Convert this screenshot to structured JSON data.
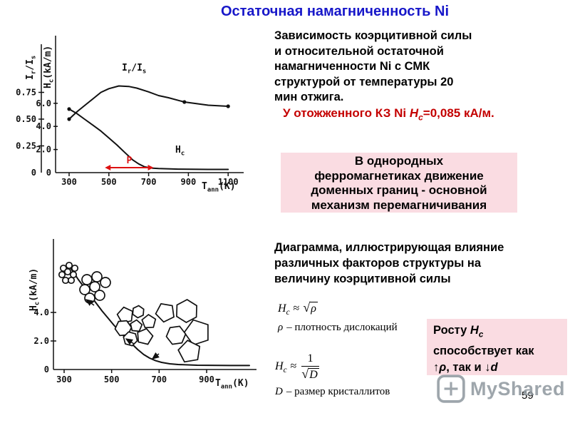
{
  "title": "Остаточная намагниченность Ni",
  "page_number": "59",
  "watermark": {
    "brand": "MyShared"
  },
  "colors": {
    "title_blue": "#1717c9",
    "red_text": "#c40000",
    "pink_box": "#fadce2",
    "annotation_red": "#dd1111",
    "watermark_gray": "#8e979e"
  },
  "intro": {
    "lines": [
      "Зависимость коэрцитивной силы",
      "и относительной остаточной",
      "намагниченности Ni с СМК",
      "структурой от температуры 20",
      "мин отжига."
    ],
    "red_note": {
      "prefix": "У отожженного КЗ Ni ",
      "symbol": "H",
      "symbol_sub": "с",
      "suffix": "=0,085 кА/м."
    }
  },
  "domain_wall_box": {
    "lines": [
      "В однородных",
      "ферромагнетиках движение",
      "доменных границ - основной",
      "механизм перемагничивания"
    ]
  },
  "diagram_caption": {
    "lines": [
      "Диаграмма, иллюстрирующая влияние",
      "различных факторов структуры на",
      "величину коэрцитивной силы"
    ]
  },
  "formulas": {
    "dislocation": {
      "lhs": "H",
      "lhs_sub": "c",
      "relation": "≈",
      "sqrt": "√",
      "radicand": "ρ"
    },
    "dislocation_note": {
      "symbol": "ρ",
      "text": "– плотность дислокаций"
    },
    "grain": {
      "lhs": "H",
      "lhs_sub": "c",
      "relation": "≈",
      "numerator": "1",
      "sqrt": "√",
      "radicand": "D"
    },
    "grain_note": {
      "symbol": "D",
      "text": "– размер кристаллитов"
    }
  },
  "growth_box": {
    "l1_prefix": "Росту ",
    "symbol": "H",
    "symbol_sub": "с",
    "l2": "способствует как",
    "l3_up": "↑",
    "l3_rho": "ρ",
    "l3_mid": ", так и ↓",
    "l3_d": "d"
  },
  "chart_data": [
    {
      "type": "line",
      "axes": {
        "x": {
          "base": "T",
          "sub": "ann",
          "rest": "(K)",
          "ticks": [
            "300",
            "500",
            "700",
            "900",
            "1100"
          ],
          "tick_values": [
            300,
            500,
            700,
            900,
            1100
          ],
          "range": [
            250,
            1160
          ]
        },
        "y1": {
          "base": "I",
          "sub": "r",
          "base2": "/I",
          "sub2": "s",
          "ticks": [
            "0.75",
            "0.50",
            "0.25",
            "0"
          ],
          "tick_values": [
            0.75,
            0.5,
            0.25,
            0
          ],
          "range": [
            0,
            0.9
          ]
        },
        "y2": {
          "base": "H",
          "sub": "c",
          "rest": "(kA/m)",
          "ticks": [
            "6.0",
            "4.0",
            "2.0",
            "0"
          ],
          "tick_values": [
            6,
            4,
            2,
            0
          ],
          "range": [
            0,
            7.5
          ]
        }
      },
      "series": [
        {
          "name": "Ir/Is",
          "axis": "y1",
          "points": [
            [
              300,
              0.5
            ],
            [
              340,
              0.57
            ],
            [
              380,
              0.63
            ],
            [
              420,
              0.69
            ],
            [
              460,
              0.75
            ],
            [
              500,
              0.785
            ],
            [
              550,
              0.81
            ],
            [
              600,
              0.805
            ],
            [
              640,
              0.79
            ],
            [
              700,
              0.755
            ],
            [
              750,
              0.72
            ],
            [
              800,
              0.7
            ],
            [
              880,
              0.66
            ],
            [
              940,
              0.645
            ],
            [
              1000,
              0.63
            ],
            [
              1050,
              0.625
            ],
            [
              1100,
              0.62
            ]
          ],
          "marker_indices": [
            0,
            12,
            16
          ]
        },
        {
          "name": "Hc",
          "axis": "y2",
          "points": [
            [
              300,
              5.5
            ],
            [
              340,
              5.1
            ],
            [
              380,
              4.6
            ],
            [
              420,
              4.1
            ],
            [
              460,
              3.6
            ],
            [
              500,
              3.0
            ],
            [
              540,
              2.4
            ],
            [
              580,
              1.75
            ],
            [
              620,
              1.1
            ],
            [
              650,
              0.75
            ],
            [
              680,
              0.5
            ],
            [
              720,
              0.38
            ],
            [
              750,
              0.35
            ],
            [
              850,
              0.3
            ],
            [
              1000,
              0.28
            ],
            [
              1100,
              0.28
            ]
          ],
          "marker_indices": [
            0
          ]
        }
      ],
      "annotation": {
        "label": "P",
        "x_from": 480,
        "x_to": 725,
        "color": "#dd1111"
      }
    },
    {
      "type": "line",
      "axes": {
        "x": {
          "base": "T",
          "sub": "ann",
          "rest": "(K)",
          "ticks": [
            "300",
            "500",
            "700",
            "900"
          ],
          "tick_values": [
            300,
            500,
            700,
            900
          ],
          "range": [
            250,
            1100
          ]
        },
        "y": {
          "base": "H",
          "sub": "c",
          "rest": "(kA/m)",
          "ticks": [
            "4.0",
            "2.0",
            "0"
          ],
          "tick_values": [
            4,
            2,
            0
          ],
          "range": [
            0,
            8
          ]
        }
      },
      "series": [
        {
          "name": "Hc",
          "points": [
            [
              315,
              7.4
            ],
            [
              340,
              6.8
            ],
            [
              360,
              6.3
            ],
            [
              385,
              5.75
            ],
            [
              410,
              5.2
            ],
            [
              435,
              4.65
            ],
            [
              460,
              4.1
            ],
            [
              485,
              3.6
            ],
            [
              510,
              3.1
            ],
            [
              535,
              2.65
            ],
            [
              560,
              2.2
            ],
            [
              585,
              1.8
            ],
            [
              610,
              1.4
            ],
            [
              635,
              1.05
            ],
            [
              660,
              0.8
            ],
            [
              685,
              0.62
            ],
            [
              710,
              0.5
            ],
            [
              745,
              0.4
            ],
            [
              780,
              0.35
            ],
            [
              860,
              0.3
            ],
            [
              1000,
              0.28
            ],
            [
              1080,
              0.28
            ]
          ]
        }
      ]
    }
  ]
}
